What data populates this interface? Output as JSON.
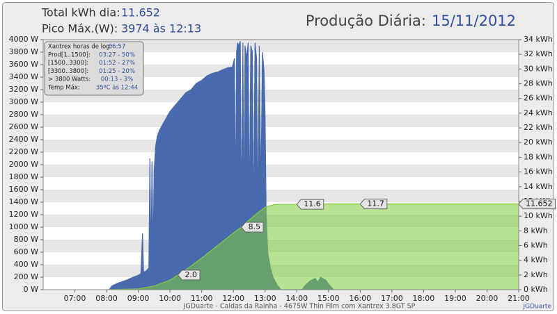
{
  "header": {
    "total_label": "Total kWh dia:",
    "total_value": "11.652",
    "peak_label": "Pico Máx.(W):",
    "peak_value": "3974 às 12:13",
    "title": "Produção Diária:",
    "date": "15/11/2012"
  },
  "info_box": {
    "rows": [
      [
        "Xantrex horas de log:",
        "06:57"
      ],
      [
        "Prod[1..1500]:",
        "03:27 - 50%"
      ],
      [
        "[1500..3300]:",
        "01:52 - 27%"
      ],
      [
        "[3300..3800]:",
        "01:25 - 20%"
      ],
      [
        "> 3800 Watts:",
        "00:13 - 3%"
      ],
      [
        "Temp Máx:",
        "35ºC às 12:44"
      ]
    ]
  },
  "footer": {
    "caption": "JGDuarte  -  Caldas da Rainha  -  4675W Thin Film com Xantrex 3.8GT SP",
    "credit": "JGDuarte"
  },
  "chart_data": {
    "type": "area",
    "xlim": [
      "06:00",
      "21:00"
    ],
    "xticks": [
      "07:00",
      "08:00",
      "09:00",
      "10:00",
      "11:00",
      "12:00",
      "13:00",
      "14:00",
      "15:00",
      "16:00",
      "17:00",
      "18:00",
      "19:00",
      "20:00",
      "21:00"
    ],
    "ylim": [
      0,
      4000
    ],
    "yticks": [
      {
        "value": 0,
        "label": "0 W"
      },
      {
        "value": 200,
        "label": "200 W"
      },
      {
        "value": 400,
        "label": "400 W"
      },
      {
        "value": 600,
        "label": "600 W"
      },
      {
        "value": 800,
        "label": "800 W"
      },
      {
        "value": 1000,
        "label": "1000 W"
      },
      {
        "value": 1200,
        "label": "1200 W"
      },
      {
        "value": 1400,
        "label": "1400 W"
      },
      {
        "value": 1600,
        "label": "1600 W"
      },
      {
        "value": 1800,
        "label": "1800 W"
      },
      {
        "value": 2000,
        "label": "2000 W"
      },
      {
        "value": 2200,
        "label": "2200 W"
      },
      {
        "value": 2400,
        "label": "2400 W"
      },
      {
        "value": 2600,
        "label": "2600 W"
      },
      {
        "value": 2800,
        "label": "2800 W"
      },
      {
        "value": 3000,
        "label": "3000 W"
      },
      {
        "value": 3200,
        "label": "3200 W"
      },
      {
        "value": 3400,
        "label": "3400 W"
      },
      {
        "value": 3600,
        "label": "3600 W"
      },
      {
        "value": 3800,
        "label": "3800 W"
      },
      {
        "value": 4000,
        "label": "4000 W"
      }
    ],
    "y2lim": [
      0,
      34
    ],
    "y2ticks": [
      {
        "value": 0,
        "label": "0 kWh"
      },
      {
        "value": 2,
        "label": "2 kWh"
      },
      {
        "value": 4,
        "label": "4 kWh"
      },
      {
        "value": 6,
        "label": "6 kWh"
      },
      {
        "value": 8,
        "label": "8 kWh"
      },
      {
        "value": 10,
        "label": "10 kWh"
      },
      {
        "value": 12,
        "label": "12 kWh"
      },
      {
        "value": 14,
        "label": "14 kWh"
      },
      {
        "value": 16,
        "label": "16 kWh"
      },
      {
        "value": 18,
        "label": "18 kWh"
      },
      {
        "value": 20,
        "label": "20 kWh"
      },
      {
        "value": 22,
        "label": "22 kWh"
      },
      {
        "value": 24,
        "label": "24 kWh"
      },
      {
        "value": 26,
        "label": "26 kWh"
      },
      {
        "value": 28,
        "label": "28 kWh"
      },
      {
        "value": 30,
        "label": "30 kWh"
      },
      {
        "value": 32,
        "label": "32 kWh"
      },
      {
        "value": 34,
        "label": "34 kWh"
      }
    ],
    "grid": true,
    "series": [
      {
        "color": "#4a6aae",
        "x": [
          "08:05",
          "08:10",
          "08:20",
          "08:30",
          "08:40",
          "08:50",
          "09:00",
          "09:05",
          "09:08",
          "09:10",
          "09:15",
          "09:20",
          "09:22",
          "09:24",
          "09:26",
          "09:28",
          "09:30",
          "09:33",
          "09:36",
          "09:40",
          "09:50",
          "10:00",
          "10:10",
          "10:20",
          "10:30",
          "10:40",
          "10:50",
          "11:00",
          "11:10",
          "11:20",
          "11:30",
          "11:40",
          "11:50",
          "11:58",
          "12:02",
          "12:04",
          "12:06",
          "12:08",
          "12:10",
          "12:13",
          "12:15",
          "12:18",
          "12:20",
          "12:22",
          "12:25",
          "12:28",
          "12:30",
          "12:33",
          "12:36",
          "12:38",
          "12:41",
          "12:44",
          "12:46",
          "12:49",
          "12:52",
          "12:55",
          "12:58",
          "13:00",
          "13:02",
          "13:05",
          "13:10",
          "13:15",
          "13:20",
          "13:25",
          "13:30",
          "14:10",
          "14:15",
          "14:25",
          "14:35",
          "14:40",
          "14:45",
          "14:55",
          "15:00",
          "15:10"
        ],
        "values": [
          0,
          60,
          100,
          130,
          160,
          200,
          230,
          260,
          900,
          280,
          300,
          350,
          2100,
          400,
          2050,
          500,
          1900,
          2300,
          2450,
          2550,
          2700,
          2850,
          2950,
          3050,
          3150,
          3200,
          3300,
          3350,
          3420,
          3460,
          3480,
          3520,
          3550,
          3560,
          3700,
          1300,
          3800,
          3950,
          3900,
          3974,
          1100,
          3950,
          800,
          3900,
          3700,
          3950,
          1200,
          3900,
          3800,
          900,
          3950,
          3700,
          1000,
          3900,
          1500,
          3800,
          3500,
          2800,
          1200,
          600,
          350,
          200,
          120,
          50,
          0,
          0,
          60,
          140,
          180,
          120,
          200,
          150,
          90,
          0
        ]
      },
      {
        "color": "#7fcc3a",
        "axis": "y2",
        "x": [
          "08:00",
          "09:00",
          "09:30",
          "10:00",
          "10:15",
          "10:30",
          "11:00",
          "11:30",
          "12:00",
          "12:15",
          "12:30",
          "12:45",
          "13:00",
          "13:10",
          "13:20",
          "13:30",
          "14:00",
          "14:30",
          "15:00",
          "15:10",
          "21:00"
        ],
        "values": [
          0,
          0.1,
          0.5,
          1.3,
          2.0,
          2.7,
          4.3,
          6.0,
          7.7,
          8.5,
          9.5,
          10.4,
          11.2,
          11.45,
          11.58,
          11.6,
          11.6,
          11.62,
          11.65,
          11.652,
          11.652
        ]
      }
    ],
    "annotations": [
      {
        "x": "10:15",
        "value": 2.0,
        "label": "2.0"
      },
      {
        "x": "12:15",
        "value": 8.5,
        "label": "8.5"
      },
      {
        "x": "14:00",
        "value": 11.6,
        "label": "11.6"
      },
      {
        "x": "16:00",
        "value": 11.652,
        "label": "11.7"
      },
      {
        "x": "21:00",
        "value": 11.652
      }
    ]
  }
}
